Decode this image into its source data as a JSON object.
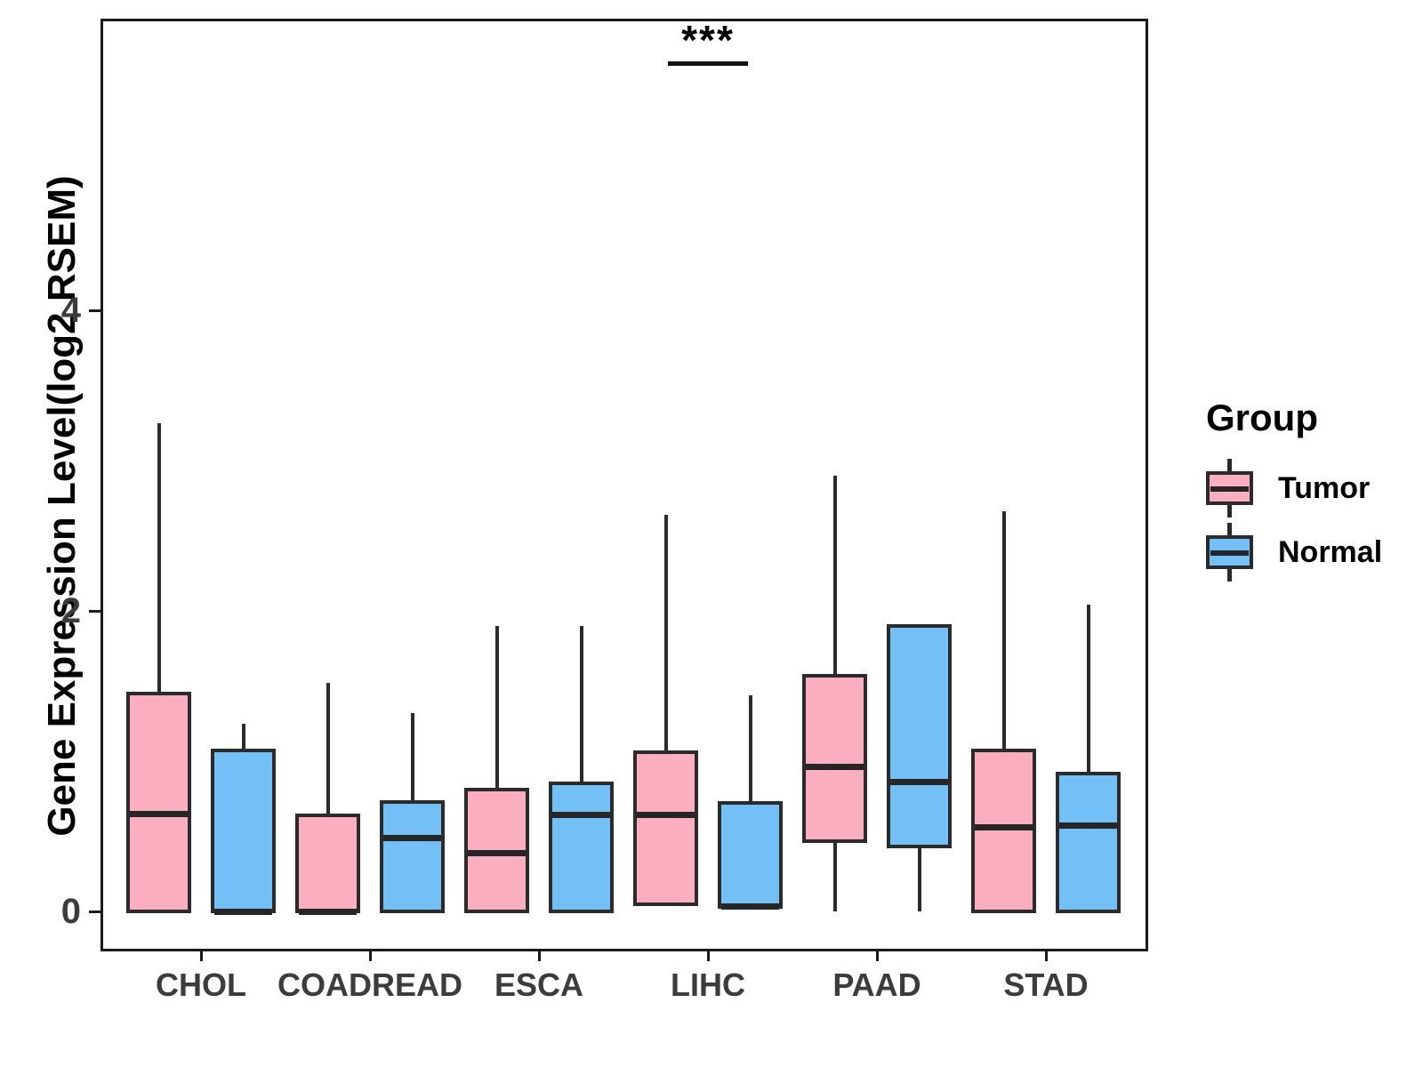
{
  "chart_data": {
    "type": "boxplot",
    "title": "",
    "xlabel": "",
    "ylabel": "Gene Expression Level(log2 RSEM)",
    "categories": [
      "CHOL",
      "COADREAD",
      "ESCA",
      "LIHC",
      "PAAD",
      "STAD"
    ],
    "yticks": [
      0,
      2,
      4
    ],
    "ylim": [
      -0.27,
      5.95
    ],
    "grid": false,
    "legend_position": "right",
    "legend": {
      "title": "Group",
      "entries": [
        {
          "label": "Tumor",
          "color": "#FBAEC0"
        },
        {
          "label": "Normal",
          "color": "#72C0F5"
        }
      ]
    },
    "significance_annotation": {
      "label": "***",
      "category": "LIHC"
    },
    "series": [
      {
        "name": "Tumor",
        "fill": "#FBAEC0",
        "boxes": [
          {
            "cat": "CHOL",
            "low": 0,
            "q1": 0,
            "med": 0.65,
            "q3": 1.45,
            "high": 3.25
          },
          {
            "cat": "COADREAD",
            "low": 0,
            "q1": 0,
            "med": 0,
            "q3": 0.64,
            "high": 1.52
          },
          {
            "cat": "ESCA",
            "low": 0,
            "q1": 0,
            "med": 0.39,
            "q3": 0.81,
            "high": 1.9
          },
          {
            "cat": "LIHC",
            "low": 0.05,
            "q1": 0.05,
            "med": 0.64,
            "q3": 1.06,
            "high": 2.64
          },
          {
            "cat": "PAAD",
            "low": 0,
            "q1": 0.47,
            "med": 0.96,
            "q3": 1.57,
            "high": 2.9
          },
          {
            "cat": "STAD",
            "low": 0,
            "q1": 0,
            "med": 0.56,
            "q3": 1.07,
            "high": 2.66
          }
        ]
      },
      {
        "name": "Normal",
        "fill": "#72C0F5",
        "boxes": [
          {
            "cat": "CHOL",
            "low": 0,
            "q1": 0,
            "med": 0,
            "q3": 1.07,
            "high": 1.25
          },
          {
            "cat": "COADREAD",
            "low": 0,
            "q1": 0,
            "med": 0.49,
            "q3": 0.73,
            "high": 1.32
          },
          {
            "cat": "ESCA",
            "low": 0,
            "q1": 0,
            "med": 0.64,
            "q3": 0.85,
            "high": 1.9
          },
          {
            "cat": "LIHC",
            "low": 0.03,
            "q1": 0.03,
            "med": 0.03,
            "q3": 0.72,
            "high": 1.44
          },
          {
            "cat": "PAAD",
            "low": 0,
            "q1": 0.43,
            "med": 0.86,
            "q3": 1.9,
            "high": 1.9
          },
          {
            "cat": "STAD",
            "low": 0,
            "q1": 0,
            "med": 0.57,
            "q3": 0.92,
            "high": 2.04
          }
        ]
      }
    ],
    "colors": {
      "box_border": "#2B2B2B",
      "axis_line": "#1A1A1A",
      "tick_text": "#3C3C3C",
      "title_text": "#000000"
    }
  }
}
